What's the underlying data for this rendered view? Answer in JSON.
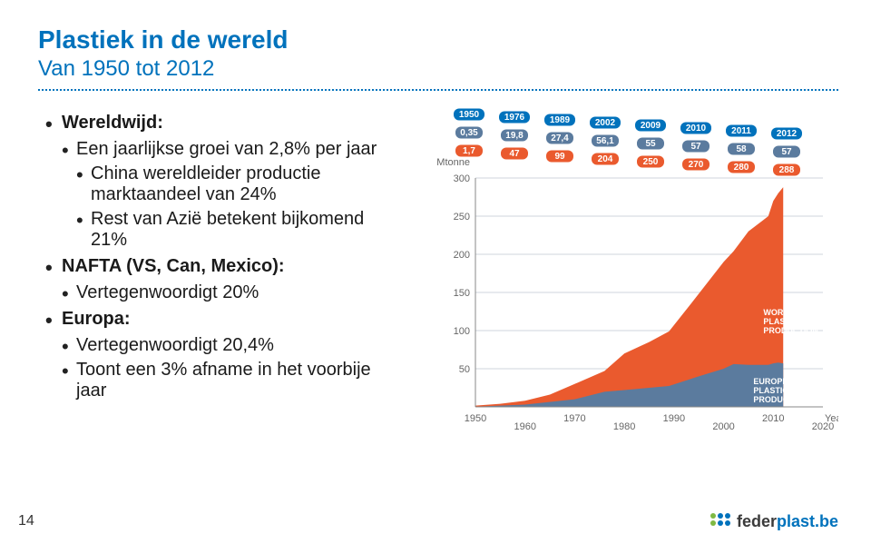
{
  "header": {
    "title": "Plastiek in de wereld",
    "subtitle": "Van 1950 tot 2012",
    "title_color": "#0072bc",
    "dotline_color": "#0072bc"
  },
  "bullets": {
    "wereldwijd_label": "Wereldwijd:",
    "wereld_b1": "Een jaarlijkse groei van 2,8% per jaar",
    "wereld_b2a": "China wereldleider productie marktaandeel van 24%",
    "wereld_b2b": "Rest van Azië betekent bijkomend 21%",
    "nafta_label": "NAFTA (VS, Can, Mexico):",
    "nafta_b1": "Vertegenwoordigt 20%",
    "europa_label": "Europa:",
    "europa_b1": "Vertegenwoordigt 20,4%",
    "europa_b2": "Toont een 3% afname in het voorbije jaar"
  },
  "chart": {
    "type": "area",
    "unit_label": "Mtonne",
    "y_axis": {
      "min": 0,
      "max": 300,
      "ticks": [
        50,
        100,
        150,
        200,
        250,
        300
      ]
    },
    "x_axis": {
      "min": 1950,
      "max": 2020,
      "ticks": [
        1950,
        1960,
        1970,
        1980,
        1990,
        2000,
        2010,
        2020
      ],
      "label": "Year"
    },
    "background_color": "#ffffff",
    "grid_color": "#cfd6dc",
    "series": {
      "world": {
        "color": "#ea5a2e",
        "legend": "WORLD PLASTICS PRODUCTION",
        "points": [
          {
            "x": 1950,
            "y": 1.7
          },
          {
            "x": 1955,
            "y": 4
          },
          {
            "x": 1960,
            "y": 8
          },
          {
            "x": 1965,
            "y": 16
          },
          {
            "x": 1970,
            "y": 30
          },
          {
            "x": 1976,
            "y": 47
          },
          {
            "x": 1980,
            "y": 70
          },
          {
            "x": 1985,
            "y": 85
          },
          {
            "x": 1989,
            "y": 99
          },
          {
            "x": 1994,
            "y": 140
          },
          {
            "x": 2000,
            "y": 190
          },
          {
            "x": 2002,
            "y": 204
          },
          {
            "x": 2005,
            "y": 230
          },
          {
            "x": 2008,
            "y": 245
          },
          {
            "x": 2009,
            "y": 250
          },
          {
            "x": 2010,
            "y": 270
          },
          {
            "x": 2011,
            "y": 280
          },
          {
            "x": 2012,
            "y": 288
          }
        ]
      },
      "europe": {
        "color": "#5b7b9e",
        "legend": "EUROPEAN PLASTICS PRODUCTION",
        "points": [
          {
            "x": 1950,
            "y": 0.35
          },
          {
            "x": 1960,
            "y": 3
          },
          {
            "x": 1970,
            "y": 10
          },
          {
            "x": 1976,
            "y": 19.8
          },
          {
            "x": 1980,
            "y": 22
          },
          {
            "x": 1989,
            "y": 27.4
          },
          {
            "x": 1995,
            "y": 40
          },
          {
            "x": 2000,
            "y": 50
          },
          {
            "x": 2002,
            "y": 56.1
          },
          {
            "x": 2005,
            "y": 55
          },
          {
            "x": 2009,
            "y": 55
          },
          {
            "x": 2010,
            "y": 57
          },
          {
            "x": 2011,
            "y": 58
          },
          {
            "x": 2012,
            "y": 57
          }
        ]
      }
    },
    "callouts": {
      "years": [
        "1950",
        "1976",
        "1989",
        "2002",
        "2009",
        "2010",
        "2011",
        "2012"
      ],
      "world": [
        "1,7",
        "47",
        "99",
        "204",
        "250",
        "270",
        "280",
        "288"
      ],
      "europe": [
        "0,35",
        "19,8",
        "27,4",
        "56,1",
        "55",
        "57",
        "58",
        "57"
      ]
    }
  },
  "footer": {
    "page_number": "14",
    "logo_text_a": "feder",
    "logo_text_b": "plast",
    "logo_text_c": ".be",
    "logo_colors": [
      "#7fb942",
      "#0072bc",
      "#0072bc",
      "#7fb942",
      "#0072bc",
      "#0072bc"
    ]
  }
}
